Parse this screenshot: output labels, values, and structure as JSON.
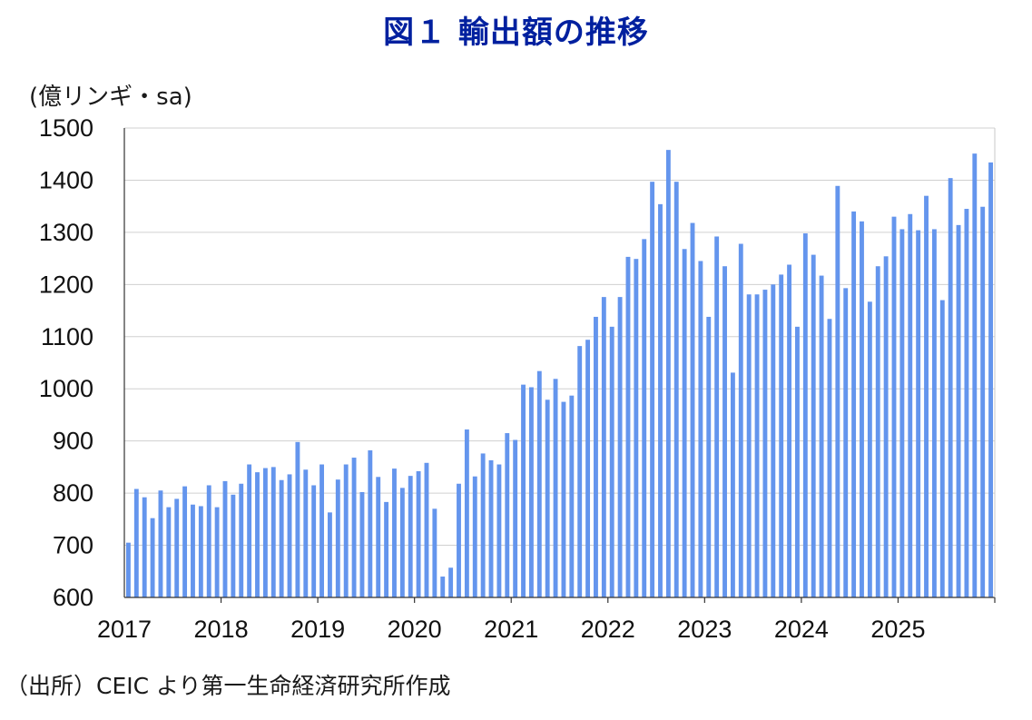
{
  "title": "図１ 輸出額の推移",
  "source": "（出所）CEIC より第一生命経済研究所作成",
  "chart_data": {
    "type": "bar",
    "title": "図１ 輸出額の推移",
    "ylabel": "(億リンギ・sa)",
    "xlabel": "",
    "ylim": [
      600,
      1500
    ],
    "yticks": [
      600,
      700,
      800,
      900,
      1000,
      1100,
      1200,
      1300,
      1400,
      1500
    ],
    "xtick_labels": [
      "2017",
      "2018",
      "2019",
      "2020",
      "2021",
      "2022",
      "2023",
      "2024",
      "2025"
    ],
    "grid": true,
    "bar_color": "#6495ed",
    "categories": [
      "2017-01",
      "2017-02",
      "2017-03",
      "2017-04",
      "2017-05",
      "2017-06",
      "2017-07",
      "2017-08",
      "2017-09",
      "2017-10",
      "2017-11",
      "2017-12",
      "2018-01",
      "2018-02",
      "2018-03",
      "2018-04",
      "2018-05",
      "2018-06",
      "2018-07",
      "2018-08",
      "2018-09",
      "2018-10",
      "2018-11",
      "2018-12",
      "2019-01",
      "2019-02",
      "2019-03",
      "2019-04",
      "2019-05",
      "2019-06",
      "2019-07",
      "2019-08",
      "2019-09",
      "2019-10",
      "2019-11",
      "2019-12",
      "2020-01",
      "2020-02",
      "2020-03",
      "2020-04",
      "2020-05",
      "2020-06",
      "2020-07",
      "2020-08",
      "2020-09",
      "2020-10",
      "2020-11",
      "2020-12",
      "2021-01",
      "2021-02",
      "2021-03",
      "2021-04",
      "2021-05",
      "2021-06",
      "2021-07",
      "2021-08",
      "2021-09",
      "2021-10",
      "2021-11",
      "2021-12",
      "2022-01",
      "2022-02",
      "2022-03",
      "2022-04",
      "2022-05",
      "2022-06",
      "2022-07",
      "2022-08",
      "2022-09",
      "2022-10",
      "2022-11",
      "2022-12",
      "2023-01",
      "2023-02",
      "2023-03",
      "2023-04",
      "2023-05",
      "2023-06",
      "2023-07",
      "2023-08",
      "2023-09",
      "2023-10",
      "2023-11",
      "2023-12",
      "2024-01",
      "2024-02",
      "2024-03",
      "2024-04",
      "2024-05",
      "2024-06",
      "2024-07",
      "2024-08",
      "2024-09",
      "2024-10",
      "2024-11",
      "2024-12",
      "2025-01",
      "2025-02",
      "2025-03",
      "2025-04",
      "2025-05",
      "2025-06",
      "2025-07",
      "2025-08",
      "2025-09",
      "2025-10",
      "2025-11",
      "2025-12"
    ],
    "values": [
      705,
      808,
      792,
      752,
      805,
      773,
      789,
      813,
      778,
      775,
      815,
      773,
      823,
      797,
      818,
      855,
      840,
      848,
      850,
      825,
      836,
      898,
      845,
      815,
      855,
      763,
      826,
      855,
      868,
      802,
      882,
      831,
      783,
      847,
      810,
      833,
      842,
      858,
      770,
      640,
      657,
      818,
      922,
      832,
      876,
      863,
      855,
      915,
      902,
      1008,
      1003,
      1034,
      979,
      1019,
      975,
      987,
      1082,
      1094,
      1138,
      1176,
      1119,
      1176,
      1253,
      1249,
      1287,
      1397,
      1354,
      1458,
      1397,
      1268,
      1318,
      1245,
      1138,
      1292,
      1235,
      1031,
      1278,
      1181,
      1181,
      1190,
      1200,
      1219,
      1238,
      1119,
      1298,
      1257,
      1217,
      1134,
      1389,
      1193,
      1340,
      1321,
      1167,
      1235,
      1254,
      1330,
      1306,
      1335,
      1304,
      1370,
      1306,
      1170,
      1404,
      1314,
      1345,
      1451,
      1349,
      1434
    ]
  }
}
